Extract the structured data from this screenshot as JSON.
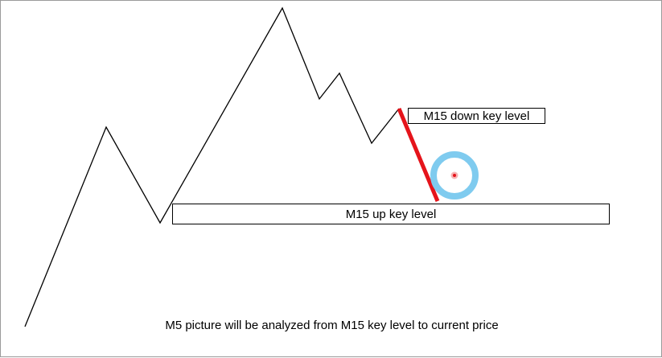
{
  "labels": {
    "down_key_level": "M15 down key level",
    "up_key_level": "M15 up key level"
  },
  "caption": "M5 picture will be analyzed from M15 key level to current price",
  "colors": {
    "price_line": "#000000",
    "current_move": "#e5141b",
    "price_marker_ring": "#7fcbef",
    "price_marker_dot": "#e5141b"
  }
}
